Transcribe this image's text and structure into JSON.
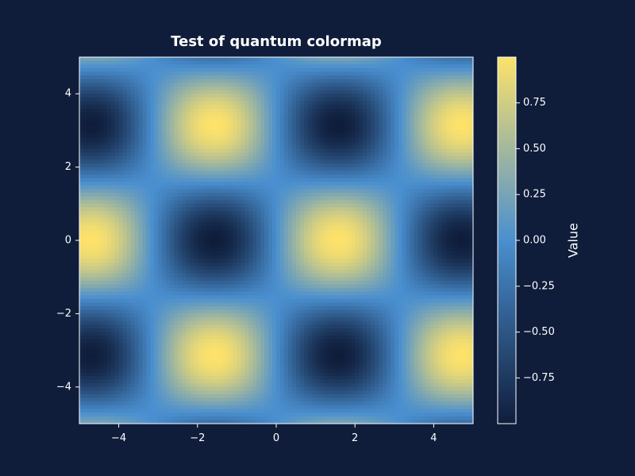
{
  "chart_data": {
    "type": "heatmap",
    "title": "Test of quantum colormap",
    "xlabel": "",
    "ylabel": "",
    "xlim": [
      -5,
      5
    ],
    "ylim": [
      -5,
      5
    ],
    "x_ticks": [
      -4,
      -2,
      0,
      2,
      4
    ],
    "x_tick_labels": [
      "−4",
      "−2",
      "0",
      "2",
      "4"
    ],
    "y_ticks": [
      4,
      2,
      0,
      -2,
      -4
    ],
    "y_tick_labels": [
      "4",
      "2",
      "0",
      "−2",
      "−4"
    ],
    "function": "sin(x) * cos(y)",
    "grid_resolution": [
      100,
      100
    ],
    "value_range": [
      -1,
      1
    ],
    "grid": false,
    "colorbar": {
      "label": "Value",
      "min": -0.9995,
      "max": 0.9995,
      "ticks": [
        0.75,
        0.5,
        0.25,
        0.0,
        -0.25,
        -0.5,
        -0.75
      ],
      "tick_labels": [
        "0.75",
        "0.50",
        "0.25",
        "0.00",
        "−0.25",
        "−0.50",
        "−0.75"
      ]
    },
    "colormap": {
      "name": "quantum",
      "stops": [
        "#0f1d3b",
        "#4a8fcf",
        "#fde26a"
      ]
    }
  },
  "colors": {
    "background": "#0f1d3b",
    "text": "#ffffff",
    "spine": "#ffffff"
  }
}
